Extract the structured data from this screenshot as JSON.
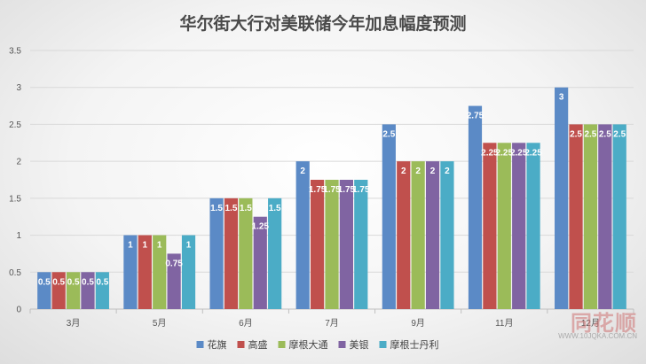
{
  "chart_data": {
    "type": "bar",
    "title": "华尔街大行对美联储今年加息幅度预测",
    "categories": [
      "3月",
      "5月",
      "6月",
      "7月",
      "9月",
      "11月",
      "12月"
    ],
    "series": [
      {
        "name": "花旗",
        "color": "#5b8ac6",
        "values": [
          0.5,
          1,
          1.5,
          2,
          2.5,
          2.75,
          3
        ],
        "labels": [
          "0.5",
          "1",
          "1.5",
          "2",
          "2.5",
          "2.75",
          "3"
        ]
      },
      {
        "name": "高盛",
        "color": "#c0504d",
        "values": [
          0.5,
          1,
          1.5,
          1.75,
          2,
          2.25,
          2.5
        ],
        "labels": [
          "0.5",
          "1",
          "1.5",
          "1.75",
          "2",
          "2.25",
          "2.5"
        ]
      },
      {
        "name": "摩根大通",
        "color": "#9bbb59",
        "values": [
          0.5,
          1,
          1.5,
          1.75,
          2,
          2.25,
          2.5
        ],
        "labels": [
          "0.5",
          "1",
          "1.5",
          "1.75",
          "2",
          "2.25",
          "2.5"
        ]
      },
      {
        "name": "美银",
        "color": "#8064a2",
        "values": [
          0.5,
          0.75,
          1.25,
          1.75,
          2,
          2.25,
          2.5
        ],
        "labels": [
          "0.5",
          "0.75",
          "1.25",
          "1.75",
          "2",
          "2.25",
          "2.5"
        ]
      },
      {
        "name": "摩根士丹利",
        "color": "#4bacc6",
        "values": [
          0.5,
          1,
          1.5,
          1.75,
          2,
          2.25,
          2.5
        ],
        "labels": [
          "0.5",
          "1",
          "1.5",
          "1.75",
          "2",
          "2.25",
          "2.5"
        ]
      }
    ],
    "ylim": [
      0,
      3.5
    ],
    "yticks": [
      "0",
      "0.5",
      "1",
      "1.5",
      "2",
      "2.5",
      "3",
      "3.5"
    ],
    "grid": true,
    "legend_position": "bottom"
  },
  "watermark": {
    "main": "同花顺",
    "sub": "WWW.10JQKA.COM.CN"
  }
}
